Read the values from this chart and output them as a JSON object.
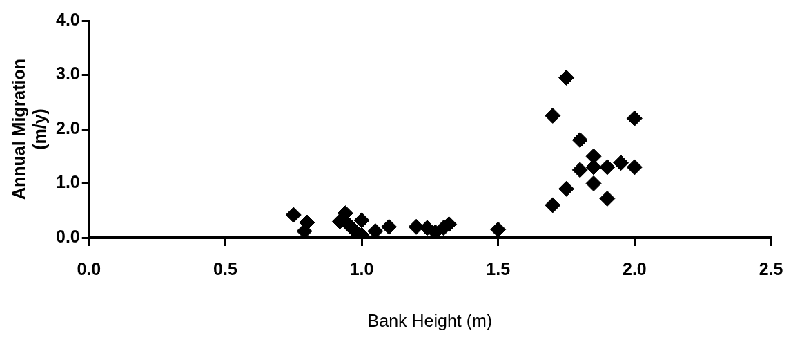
{
  "chart_data": {
    "type": "scatter",
    "xlabel": "Bank Height (m)",
    "ylabel": "Annual Migration\n(m/y)",
    "xlim": [
      0,
      2.5
    ],
    "ylim": [
      0,
      4
    ],
    "xticks": [
      {
        "value": 0,
        "label": "0.0"
      },
      {
        "value": 0.5,
        "label": "0.5"
      },
      {
        "value": 1,
        "label": "1.0"
      },
      {
        "value": 1.5,
        "label": "1.5"
      },
      {
        "value": 2,
        "label": "2.0"
      },
      {
        "value": 2.5,
        "label": "2.5"
      }
    ],
    "yticks": [
      {
        "value": 0,
        "label": "0.0"
      },
      {
        "value": 1,
        "label": "1.0"
      },
      {
        "value": 2,
        "label": "2.0"
      },
      {
        "value": 3,
        "label": "3.0"
      },
      {
        "value": 4,
        "label": "4.0"
      }
    ],
    "grid": false,
    "legend": false,
    "marker": "diamond",
    "series": [
      {
        "color": "#000000",
        "x": [
          0.75,
          0.79,
          0.8,
          0.92,
          0.94,
          0.95,
          0.97,
          1.0,
          1.0,
          1.05,
          1.1,
          1.2,
          1.24,
          1.27,
          1.3,
          1.32,
          1.5,
          1.7,
          1.75,
          1.7,
          1.75,
          1.8,
          1.8,
          1.85,
          1.85,
          1.85,
          1.9,
          1.9,
          1.95,
          2.0,
          2.0
        ],
        "values": [
          0.42,
          0.12,
          0.28,
          0.3,
          0.45,
          0.25,
          0.15,
          0.32,
          0.05,
          0.12,
          0.2,
          0.2,
          0.18,
          0.1,
          0.18,
          0.25,
          0.15,
          2.25,
          2.95,
          0.6,
          0.9,
          1.8,
          1.25,
          1.5,
          1.3,
          1.0,
          1.3,
          0.72,
          1.38,
          2.2,
          1.3
        ]
      }
    ]
  }
}
